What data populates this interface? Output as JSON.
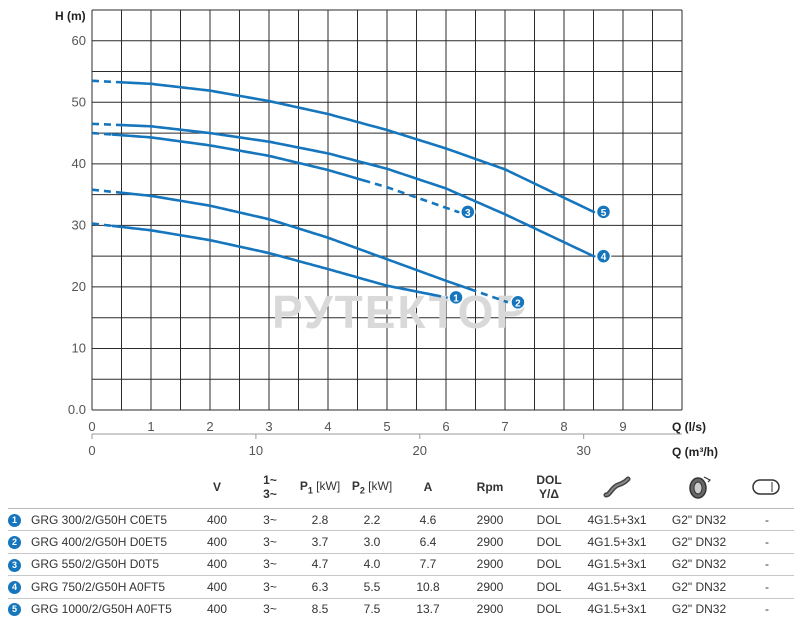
{
  "chart_data": {
    "type": "line",
    "title": "",
    "ylabel": "H (m)",
    "xlabel": "Q (l/s)",
    "x2label": "Q (m³/h)",
    "xlim": [
      0,
      10
    ],
    "ylim": [
      0,
      65
    ],
    "x_ticks": [
      "0",
      "1",
      "2",
      "3",
      "4",
      "5",
      "6",
      "7",
      "8",
      "9"
    ],
    "y_ticks": [
      "0.0",
      "10",
      "20",
      "30",
      "40",
      "50",
      "60"
    ],
    "x2_ticks": [
      "0",
      "10",
      "20",
      "30"
    ],
    "x2_tick_values": [
      0,
      10,
      20,
      30
    ],
    "grid": true,
    "watermark": "РУТЕКТОР",
    "line_color": "#1676bd",
    "series": [
      {
        "name": "1",
        "label": "1",
        "points": [
          [
            0,
            30.3
          ],
          [
            1,
            29.2
          ],
          [
            2,
            27.6
          ],
          [
            3,
            25.5
          ],
          [
            4,
            22.9
          ],
          [
            5,
            20.2
          ],
          [
            6.0,
            18.3
          ]
        ],
        "dashed_after": 5.8,
        "dashed_before": 0.35
      },
      {
        "name": "2",
        "label": "2",
        "points": [
          [
            0,
            35.8
          ],
          [
            1,
            34.8
          ],
          [
            2,
            33.2
          ],
          [
            3,
            31.0
          ],
          [
            4,
            28.0
          ],
          [
            5,
            24.5
          ],
          [
            6,
            21.0
          ],
          [
            7.05,
            17.5
          ]
        ],
        "dashed_after": 6.4,
        "dashed_before": 0.45
      },
      {
        "name": "3",
        "label": "3",
        "points": [
          [
            0,
            45.0
          ],
          [
            1,
            44.3
          ],
          [
            2,
            43.0
          ],
          [
            3,
            41.3
          ],
          [
            4,
            39.0
          ],
          [
            5,
            36.2
          ],
          [
            6.2,
            32.2
          ]
        ],
        "dashed_after": 4.6,
        "dashed_before": 0.35
      },
      {
        "name": "4",
        "label": "4",
        "points": [
          [
            0,
            46.5
          ],
          [
            1,
            46.1
          ],
          [
            2,
            45.0
          ],
          [
            3,
            43.6
          ],
          [
            4,
            41.7
          ],
          [
            5,
            39.2
          ],
          [
            6,
            36.0
          ],
          [
            7,
            31.8
          ],
          [
            8.5,
            25.0
          ]
        ],
        "dashed_after": 99,
        "dashed_before": 0.5
      },
      {
        "name": "5",
        "label": "5",
        "points": [
          [
            0,
            53.5
          ],
          [
            1,
            53.0
          ],
          [
            2,
            51.9
          ],
          [
            3,
            50.2
          ],
          [
            4,
            48.1
          ],
          [
            5,
            45.5
          ],
          [
            6,
            42.5
          ],
          [
            7,
            39.1
          ],
          [
            8.5,
            32.2
          ]
        ],
        "dashed_after": 99,
        "dashed_before": 0.5
      }
    ]
  },
  "table": {
    "headers": {
      "voltage": "V",
      "phase": "1~\n3~",
      "p1_letter": "P",
      "p1_sub": "1",
      "p1_unit": " [kW]",
      "p2_letter": "P",
      "p2_sub": "2",
      "p2_unit": " [kW]",
      "amps": "A",
      "rpm": "Rpm",
      "dol": "DOL\nY/Δ"
    },
    "icons": [
      "cable-icon",
      "discharge-flange-icon",
      "float-switch-icon"
    ],
    "rows": [
      {
        "num": "1",
        "model": "GRG 300/2/G50H C0ET5",
        "v": "400",
        "phase": "3~",
        "p1": "2.8",
        "p2": "2.2",
        "a": "4.6",
        "rpm": "2900",
        "dol": "DOL",
        "cable": "4G1.5+3x1",
        "outlet": "G2\" DN32",
        "float": "-"
      },
      {
        "num": "2",
        "model": "GRG 400/2/G50H D0ET5",
        "v": "400",
        "phase": "3~",
        "p1": "3.7",
        "p2": "3.0",
        "a": "6.4",
        "rpm": "2900",
        "dol": "DOL",
        "cable": "4G1.5+3x1",
        "outlet": "G2\" DN32",
        "float": "-"
      },
      {
        "num": "3",
        "model": "GRG 550/2/G50H D0T5",
        "v": "400",
        "phase": "3~",
        "p1": "4.7",
        "p2": "4.0",
        "a": "7.7",
        "rpm": "2900",
        "dol": "DOL",
        "cable": "4G1.5+3x1",
        "outlet": "G2\" DN32",
        "float": "-"
      },
      {
        "num": "4",
        "model": "GRG 750/2/G50H A0FT5",
        "v": "400",
        "phase": "3~",
        "p1": "6.3",
        "p2": "5.5",
        "a": "10.8",
        "rpm": "2900",
        "dol": "DOL",
        "cable": "4G1.5+3x1",
        "outlet": "G2\" DN32",
        "float": "-"
      },
      {
        "num": "5",
        "model": "GRG 1000/2/G50H A0FT5",
        "v": "400",
        "phase": "3~",
        "p1": "8.5",
        "p2": "7.5",
        "a": "13.7",
        "rpm": "2900",
        "dol": "DOL",
        "cable": "4G1.5+3x1",
        "outlet": "G2\" DN32",
        "float": "-"
      }
    ]
  }
}
